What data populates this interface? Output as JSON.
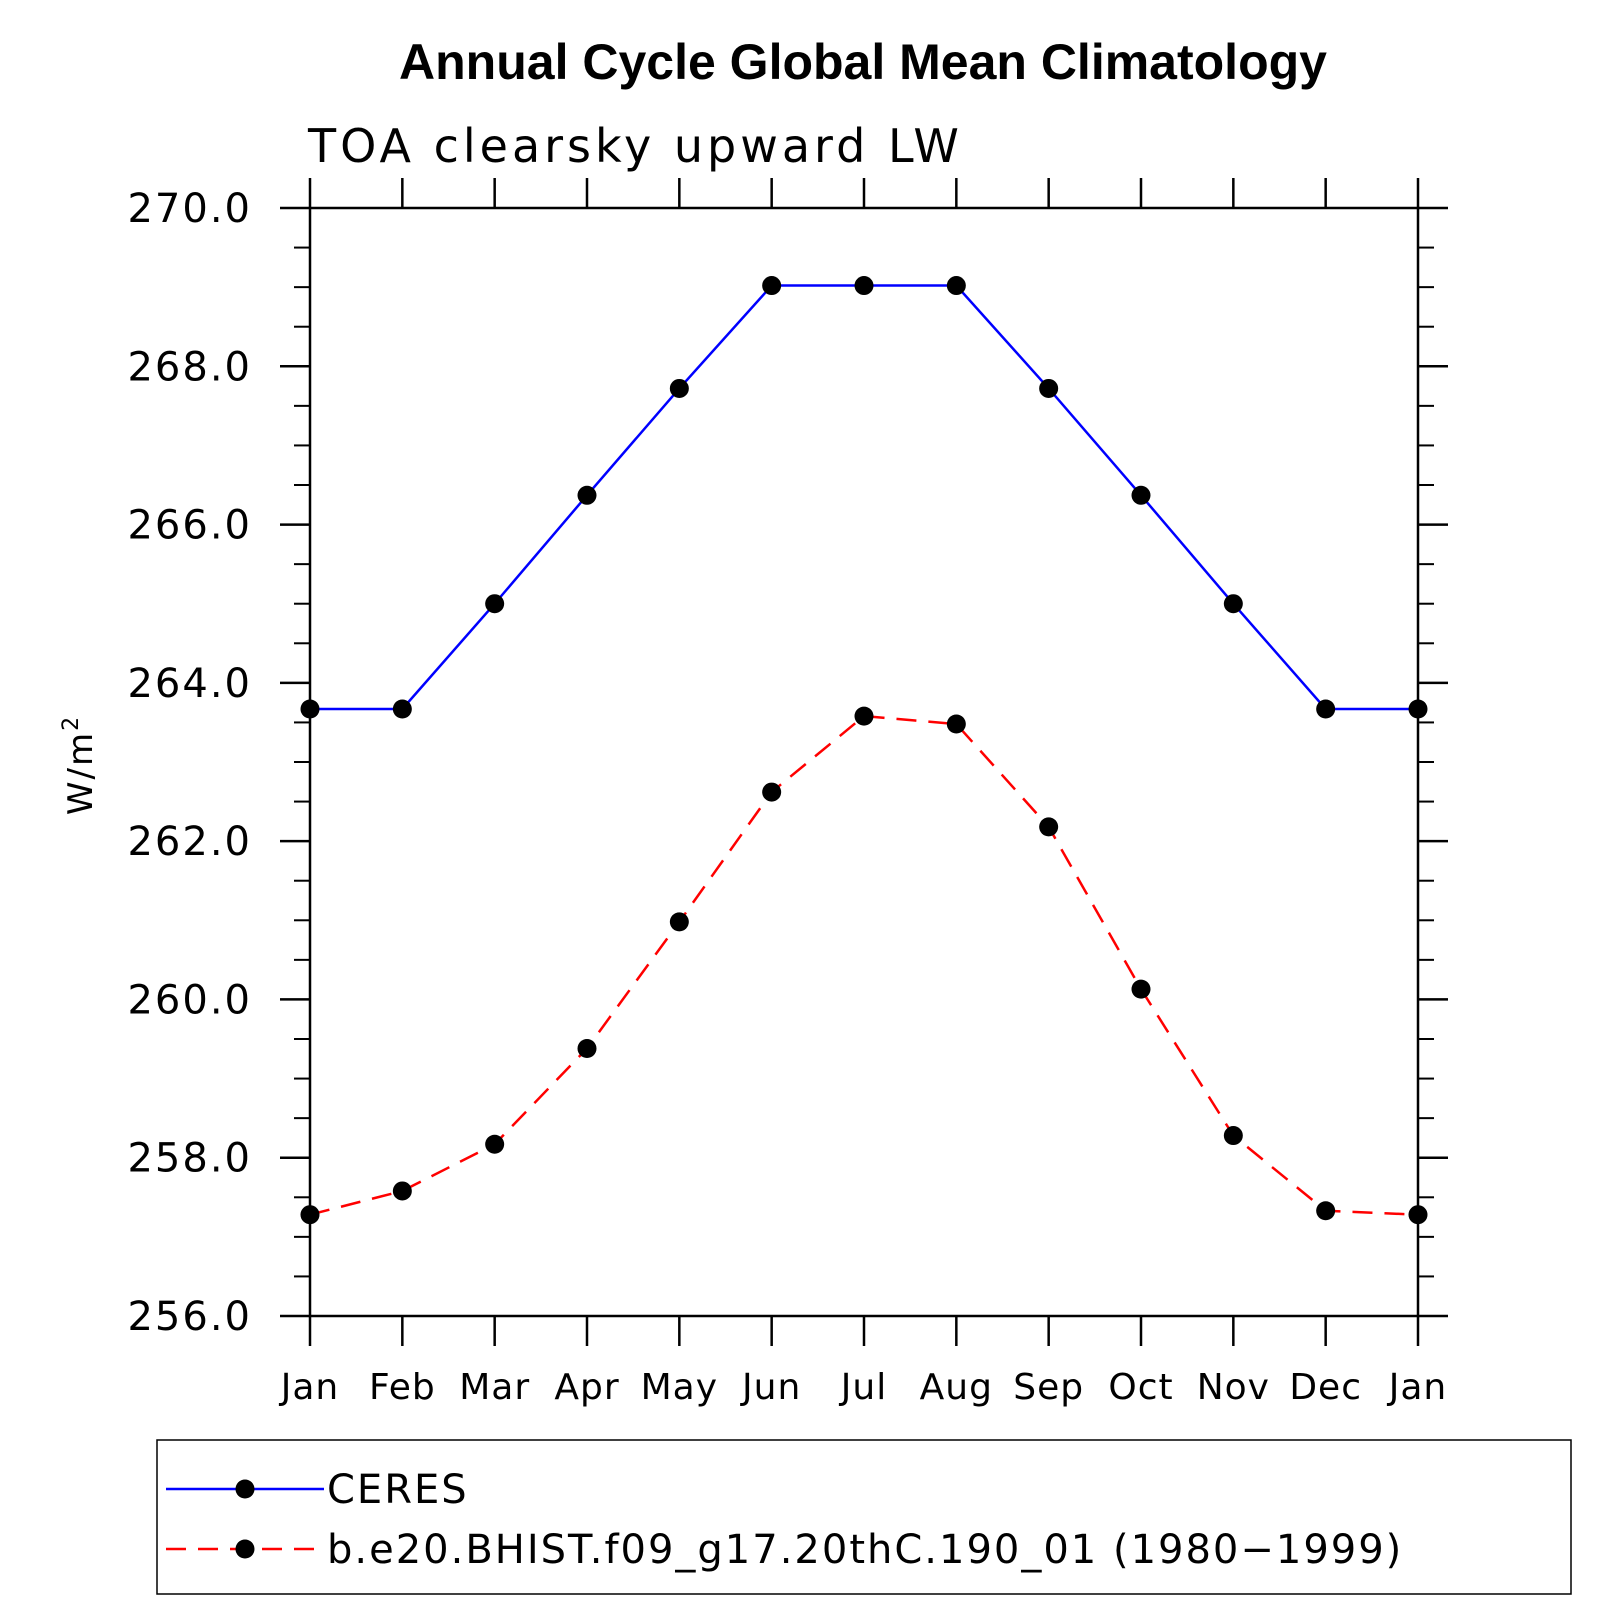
{
  "chart_data": {
    "type": "line",
    "title": "Annual Cycle Global Mean Climatology",
    "subtitle": "TOA clearsky upward LW",
    "ylabel": "W/m",
    "ylabel_superscript": "2",
    "xlabel": "",
    "categories": [
      "Jan",
      "Feb",
      "Mar",
      "Apr",
      "May",
      "Jun",
      "Jul",
      "Aug",
      "Sep",
      "Oct",
      "Nov",
      "Dec",
      "Jan"
    ],
    "ylim": [
      256.0,
      270.0
    ],
    "yticks": [
      256.0,
      258.0,
      260.0,
      262.0,
      264.0,
      266.0,
      268.0,
      270.0
    ],
    "ytick_labels": [
      "256.0",
      "258.0",
      "260.0",
      "262.0",
      "264.0",
      "266.0",
      "268.0",
      "270.0"
    ],
    "y_minor_step": 0.5,
    "grid": false,
    "legend_position": "bottom",
    "series": [
      {
        "name": "CERES",
        "color": "#0000ff",
        "line_style": "solid",
        "marker": "filled-circle",
        "values": [
          263.67,
          263.67,
          265.0,
          266.37,
          267.72,
          269.02,
          269.02,
          269.02,
          267.72,
          266.37,
          265.0,
          263.67,
          263.67
        ]
      },
      {
        "name": "b.e20.BHIST.f09_g17.20thC.190_01 (1980−1999)",
        "color": "#ff0000",
        "line_style": "dashed",
        "marker": "filled-circle",
        "values": [
          257.28,
          257.58,
          258.17,
          259.38,
          260.98,
          262.62,
          263.58,
          263.48,
          262.18,
          260.13,
          258.28,
          257.33,
          257.28
        ]
      }
    ]
  }
}
